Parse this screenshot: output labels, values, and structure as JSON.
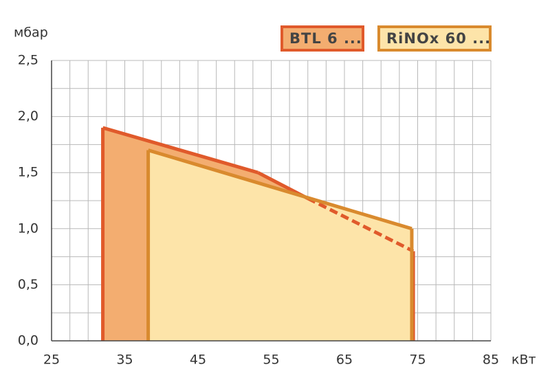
{
  "chart_data": {
    "type": "area",
    "y_label": "мбар",
    "x_label": "кВт",
    "xlim": [
      25,
      85
    ],
    "xticks": [
      25,
      35,
      45,
      55,
      65,
      75,
      85
    ],
    "ylim": [
      0,
      2.5
    ],
    "yticks": [
      {
        "value": 0,
        "label": "0,0"
      },
      {
        "value": 0.5,
        "label": "0,5"
      },
      {
        "value": 1,
        "label": "1,0"
      },
      {
        "value": 1.5,
        "label": "1,5"
      },
      {
        "value": 2,
        "label": "2,0"
      },
      {
        "value": 2.5,
        "label": "2,5"
      }
    ],
    "grid": true,
    "series": [
      {
        "name": "BTL 6 ...",
        "color": "#e05a2b",
        "fill": "#f3ad70",
        "x": [
          32,
          32,
          53.2,
          60,
          74.4,
          74.4
        ],
        "values": [
          0,
          1.9,
          1.5,
          1.27,
          0.8,
          0
        ]
      },
      {
        "name": "RiNOx 60 ...",
        "color": "#d98a2e",
        "fill": "#fde4a9",
        "x": [
          38.2,
          38.2,
          74.2,
          74.2
        ],
        "values": [
          0,
          1.7,
          1.0,
          0
        ]
      }
    ]
  }
}
